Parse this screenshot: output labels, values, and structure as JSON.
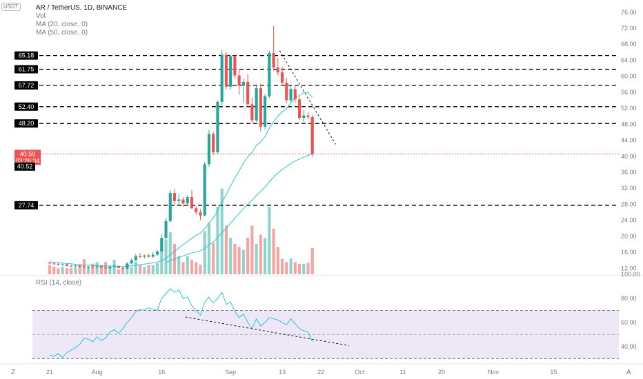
{
  "header": {
    "symbol": "AR / TetherUS, 1D, BINANCE",
    "vol": "Vol",
    "ma20": "MA (20, close, 0)",
    "ma50": "MA (50, close, 0)",
    "badge": "USDT",
    "rsi": "RSI (14, close)",
    "corner_left": "Z",
    "corner_right": "A"
  },
  "colors": {
    "up": "#26a69a",
    "down": "#ef5350",
    "vol_up": "#8fd3cb",
    "vol_down": "#f6a3a1",
    "ma": "#26c6da",
    "rsi_band": "#ede7f6",
    "rsi_line": "#26c6da",
    "level": "#000000",
    "price": "#ef5350"
  },
  "chart_data": [
    {
      "type": "candlestick",
      "y_ticks": [
        12,
        16,
        20,
        24,
        28,
        32,
        36,
        40,
        44,
        48,
        52,
        56,
        60,
        64,
        68,
        72,
        76
      ],
      "ylim": [
        10.5,
        77
      ],
      "x_ticks": [
        {
          "label": "21",
          "day": 0
        },
        {
          "label": "Aug",
          "day": 11
        },
        {
          "label": "16",
          "day": 26
        },
        {
          "label": "Sep",
          "day": 42
        },
        {
          "label": "13",
          "day": 54
        },
        {
          "label": "22",
          "day": 63
        },
        {
          "label": "Oct",
          "day": 72
        },
        {
          "label": "11",
          "day": 82
        },
        {
          "label": "20",
          "day": 91
        },
        {
          "label": "Nov",
          "day": 103
        },
        {
          "label": "15",
          "day": 117
        }
      ],
      "xlim_days": [
        -4,
        132
      ],
      "levels": [
        {
          "value": 65.18,
          "label": "65.18"
        },
        {
          "value": 61.75,
          "label": "61.75"
        },
        {
          "value": 57.72,
          "label": "57.72"
        },
        {
          "value": 52.4,
          "label": "52.40"
        },
        {
          "value": 48.2,
          "label": "48.20"
        },
        {
          "value": 27.74,
          "label": "27.74"
        }
      ],
      "last_price": {
        "value": 40.59,
        "label": "40.59",
        "countdown": "03:26:34"
      },
      "ma_label": {
        "value": 40.52,
        "label": "40.52"
      },
      "candles": [
        [
          13.4,
          13.6,
          13.0,
          13.2
        ],
        [
          13.2,
          13.4,
          12.9,
          13.1
        ],
        [
          13.1,
          13.3,
          12.7,
          12.9
        ],
        [
          12.9,
          13.2,
          12.6,
          13.0
        ],
        [
          13.0,
          13.1,
          12.4,
          12.6
        ],
        [
          12.6,
          12.9,
          12.3,
          12.5
        ],
        [
          12.5,
          12.8,
          12.2,
          12.7
        ],
        [
          12.7,
          12.9,
          12.3,
          12.4
        ],
        [
          12.4,
          12.7,
          12.0,
          12.2
        ],
        [
          12.2,
          12.6,
          11.9,
          12.4
        ],
        [
          12.4,
          12.6,
          12.1,
          12.3
        ],
        [
          12.3,
          12.7,
          12.0,
          12.5
        ],
        [
          12.5,
          12.8,
          12.1,
          12.2
        ],
        [
          12.2,
          12.4,
          11.8,
          12.0
        ],
        [
          12.0,
          12.6,
          11.8,
          12.4
        ],
        [
          12.4,
          12.9,
          12.2,
          12.6
        ],
        [
          12.6,
          12.7,
          12.0,
          12.1
        ],
        [
          12.1,
          12.4,
          11.7,
          11.9
        ],
        [
          11.9,
          13.5,
          11.8,
          13.2
        ],
        [
          13.2,
          14.4,
          13.0,
          14.0
        ],
        [
          14.0,
          15.6,
          13.8,
          15.0
        ],
        [
          15.0,
          15.8,
          14.6,
          14.9
        ],
        [
          14.9,
          15.4,
          14.4,
          15.2
        ],
        [
          15.2,
          15.6,
          14.7,
          14.9
        ],
        [
          14.9,
          16.0,
          14.5,
          15.4
        ],
        [
          15.4,
          16.6,
          15.0,
          16.2
        ],
        [
          16.2,
          20.5,
          16.0,
          19.6
        ],
        [
          19.6,
          24.6,
          19.2,
          23.8
        ],
        [
          23.8,
          31.6,
          23.4,
          30.8
        ],
        [
          30.8,
          31.8,
          28.0,
          28.8
        ],
        [
          28.8,
          30.6,
          27.8,
          29.2
        ],
        [
          29.2,
          29.8,
          27.4,
          28.2
        ],
        [
          28.2,
          30.2,
          27.6,
          29.8
        ],
        [
          29.8,
          31.6,
          26.8,
          27.0
        ],
        [
          27.0,
          27.6,
          25.4,
          26.0
        ],
        [
          26.0,
          26.8,
          24.0,
          25.2
        ],
        [
          25.2,
          38.6,
          25.0,
          38.0
        ],
        [
          38.0,
          46.6,
          37.4,
          45.6
        ],
        [
          45.6,
          46.2,
          40.4,
          41.0
        ],
        [
          41.0,
          54.0,
          40.6,
          53.6
        ],
        [
          53.6,
          66.6,
          52.8,
          65.4
        ],
        [
          65.4,
          66.0,
          56.8,
          57.4
        ],
        [
          57.4,
          65.6,
          56.6,
          65.0
        ],
        [
          65.0,
          65.4,
          59.6,
          60.2
        ],
        [
          60.2,
          61.6,
          55.4,
          57.6
        ],
        [
          57.6,
          59.4,
          53.4,
          58.6
        ],
        [
          58.6,
          60.6,
          52.2,
          53.0
        ],
        [
          53.0,
          54.6,
          48.2,
          49.0
        ],
        [
          49.0,
          57.6,
          48.6,
          57.0
        ],
        [
          57.0,
          58.2,
          46.2,
          47.4
        ],
        [
          47.4,
          55.6,
          46.8,
          55.0
        ],
        [
          55.0,
          66.4,
          54.6,
          65.8
        ],
        [
          65.8,
          72.6,
          61.4,
          62.2
        ],
        [
          62.2,
          64.6,
          60.2,
          61.0
        ],
        [
          61.0,
          62.4,
          57.6,
          58.4
        ],
        [
          58.4,
          59.6,
          53.4,
          54.0
        ],
        [
          54.0,
          57.6,
          53.6,
          56.8
        ],
        [
          56.8,
          57.8,
          53.4,
          54.2
        ],
        [
          54.2,
          55.0,
          49.0,
          49.6
        ],
        [
          49.6,
          51.6,
          48.6,
          50.2
        ],
        [
          50.2,
          51.0,
          49.2,
          49.8
        ],
        [
          49.8,
          50.4,
          39.8,
          40.59
        ]
      ],
      "volume": [
        3,
        2.5,
        2,
        2.5,
        2,
        2,
        2.2,
        3,
        5,
        2.5,
        3.5,
        4,
        3,
        4,
        2.5,
        4.8,
        1.6,
        1.8,
        2.8,
        2.4,
        4.2,
        3,
        2.4,
        3,
        3,
        3.6,
        8.8,
        11.4,
        13.8,
        10,
        6,
        4,
        6,
        4.8,
        4,
        3.2,
        14.2,
        16.8,
        10.2,
        22.2,
        28.2,
        16,
        12,
        10,
        9,
        8,
        12,
        16,
        10,
        13,
        12,
        22.2,
        15,
        9,
        5,
        4,
        5.2,
        4,
        3.4,
        3.4,
        3.8,
        8.6
      ],
      "volume_ylim": [
        0,
        34
      ],
      "ma20": [
        13.6,
        13.5,
        13.4,
        13.3,
        13.2,
        13.1,
        13.0,
        12.9,
        12.8,
        12.75,
        12.7,
        12.65,
        12.6,
        12.6,
        12.55,
        12.55,
        12.5,
        12.45,
        12.5,
        12.6,
        12.75,
        12.9,
        13.05,
        13.2,
        13.35,
        13.5,
        13.9,
        14.5,
        15.4,
        16.2,
        17.1,
        17.9,
        18.7,
        19.5,
        20.2,
        20.8,
        21.9,
        23.3,
        24.6,
        26.3,
        28.6,
        30.4,
        32.6,
        34.5,
        36.4,
        38.3,
        39.8,
        41.0,
        42.7,
        43.6,
        44.9,
        47.0,
        48.6,
        50.0,
        51.1,
        51.9,
        53.4,
        54.6,
        55.2,
        55.9,
        55.9,
        54.8
      ],
      "ma50": [
        null,
        null,
        null,
        null,
        null,
        null,
        null,
        null,
        null,
        null,
        null,
        null,
        null,
        null,
        null,
        null,
        null,
        null,
        null,
        null,
        null,
        null,
        null,
        null,
        null,
        null,
        null,
        13.4,
        13.9,
        14.3,
        14.7,
        15.1,
        15.5,
        15.8,
        16.1,
        16.4,
        17.0,
        17.8,
        18.6,
        19.6,
        20.9,
        22.0,
        23.3,
        24.5,
        25.7,
        26.9,
        28.0,
        29.0,
        30.2,
        31.2,
        32.3,
        33.6,
        34.8,
        35.8,
        36.7,
        37.4,
        38.2,
        38.8,
        39.3,
        39.8,
        40.2,
        40.52
      ],
      "trendline": [
        [
          53.4,
          66.4
        ],
        [
          66.4,
          43.0
        ]
      ]
    },
    {
      "type": "line",
      "name": "RSI (14, close)",
      "y_ticks": [
        40,
        60,
        80,
        100
      ],
      "ylim": [
        28.5,
        100
      ],
      "bands": {
        "upper": 70,
        "middle": 50,
        "lower": 30
      },
      "values": [
        33,
        32,
        34,
        31,
        35,
        37,
        39,
        42,
        47,
        46,
        44,
        48,
        45,
        47,
        52,
        54,
        51,
        55,
        60,
        64,
        69,
        71,
        71,
        72,
        71,
        70,
        80,
        84,
        88,
        85,
        87,
        80,
        81,
        74,
        70,
        66,
        77,
        81,
        76,
        80,
        85,
        75,
        77,
        69,
        64,
        67,
        60,
        55,
        63,
        57,
        60,
        64,
        63,
        62,
        60,
        58,
        63,
        59,
        55,
        53,
        52,
        44
      ],
      "trendline": [
        [
          31.5,
          64.5
        ],
        [
          69.5,
          40.8
        ]
      ]
    }
  ]
}
